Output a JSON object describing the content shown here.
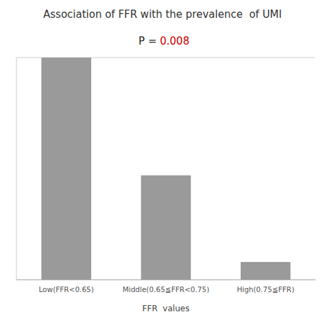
{
  "chart_data": {
    "type": "bar",
    "title": "Association of FFR with the prevalence  of UMI",
    "xlabel": "FFR  values",
    "categories": [
      "Low(FFR<0.65)",
      "Middle(0.65≦FFR<0.75)",
      "High(0.75≦FFR)"
    ],
    "values": [
      100,
      47,
      8
    ],
    "color": "#9A9A9A",
    "ylim": [
      0,
      100
    ],
    "yticks": [],
    "grid": false,
    "tick_labels": "x",
    "annotations": [
      {
        "text": "P = ",
        "color": "#222222"
      },
      {
        "text": "0.008",
        "color": "#cc0000"
      }
    ]
  }
}
